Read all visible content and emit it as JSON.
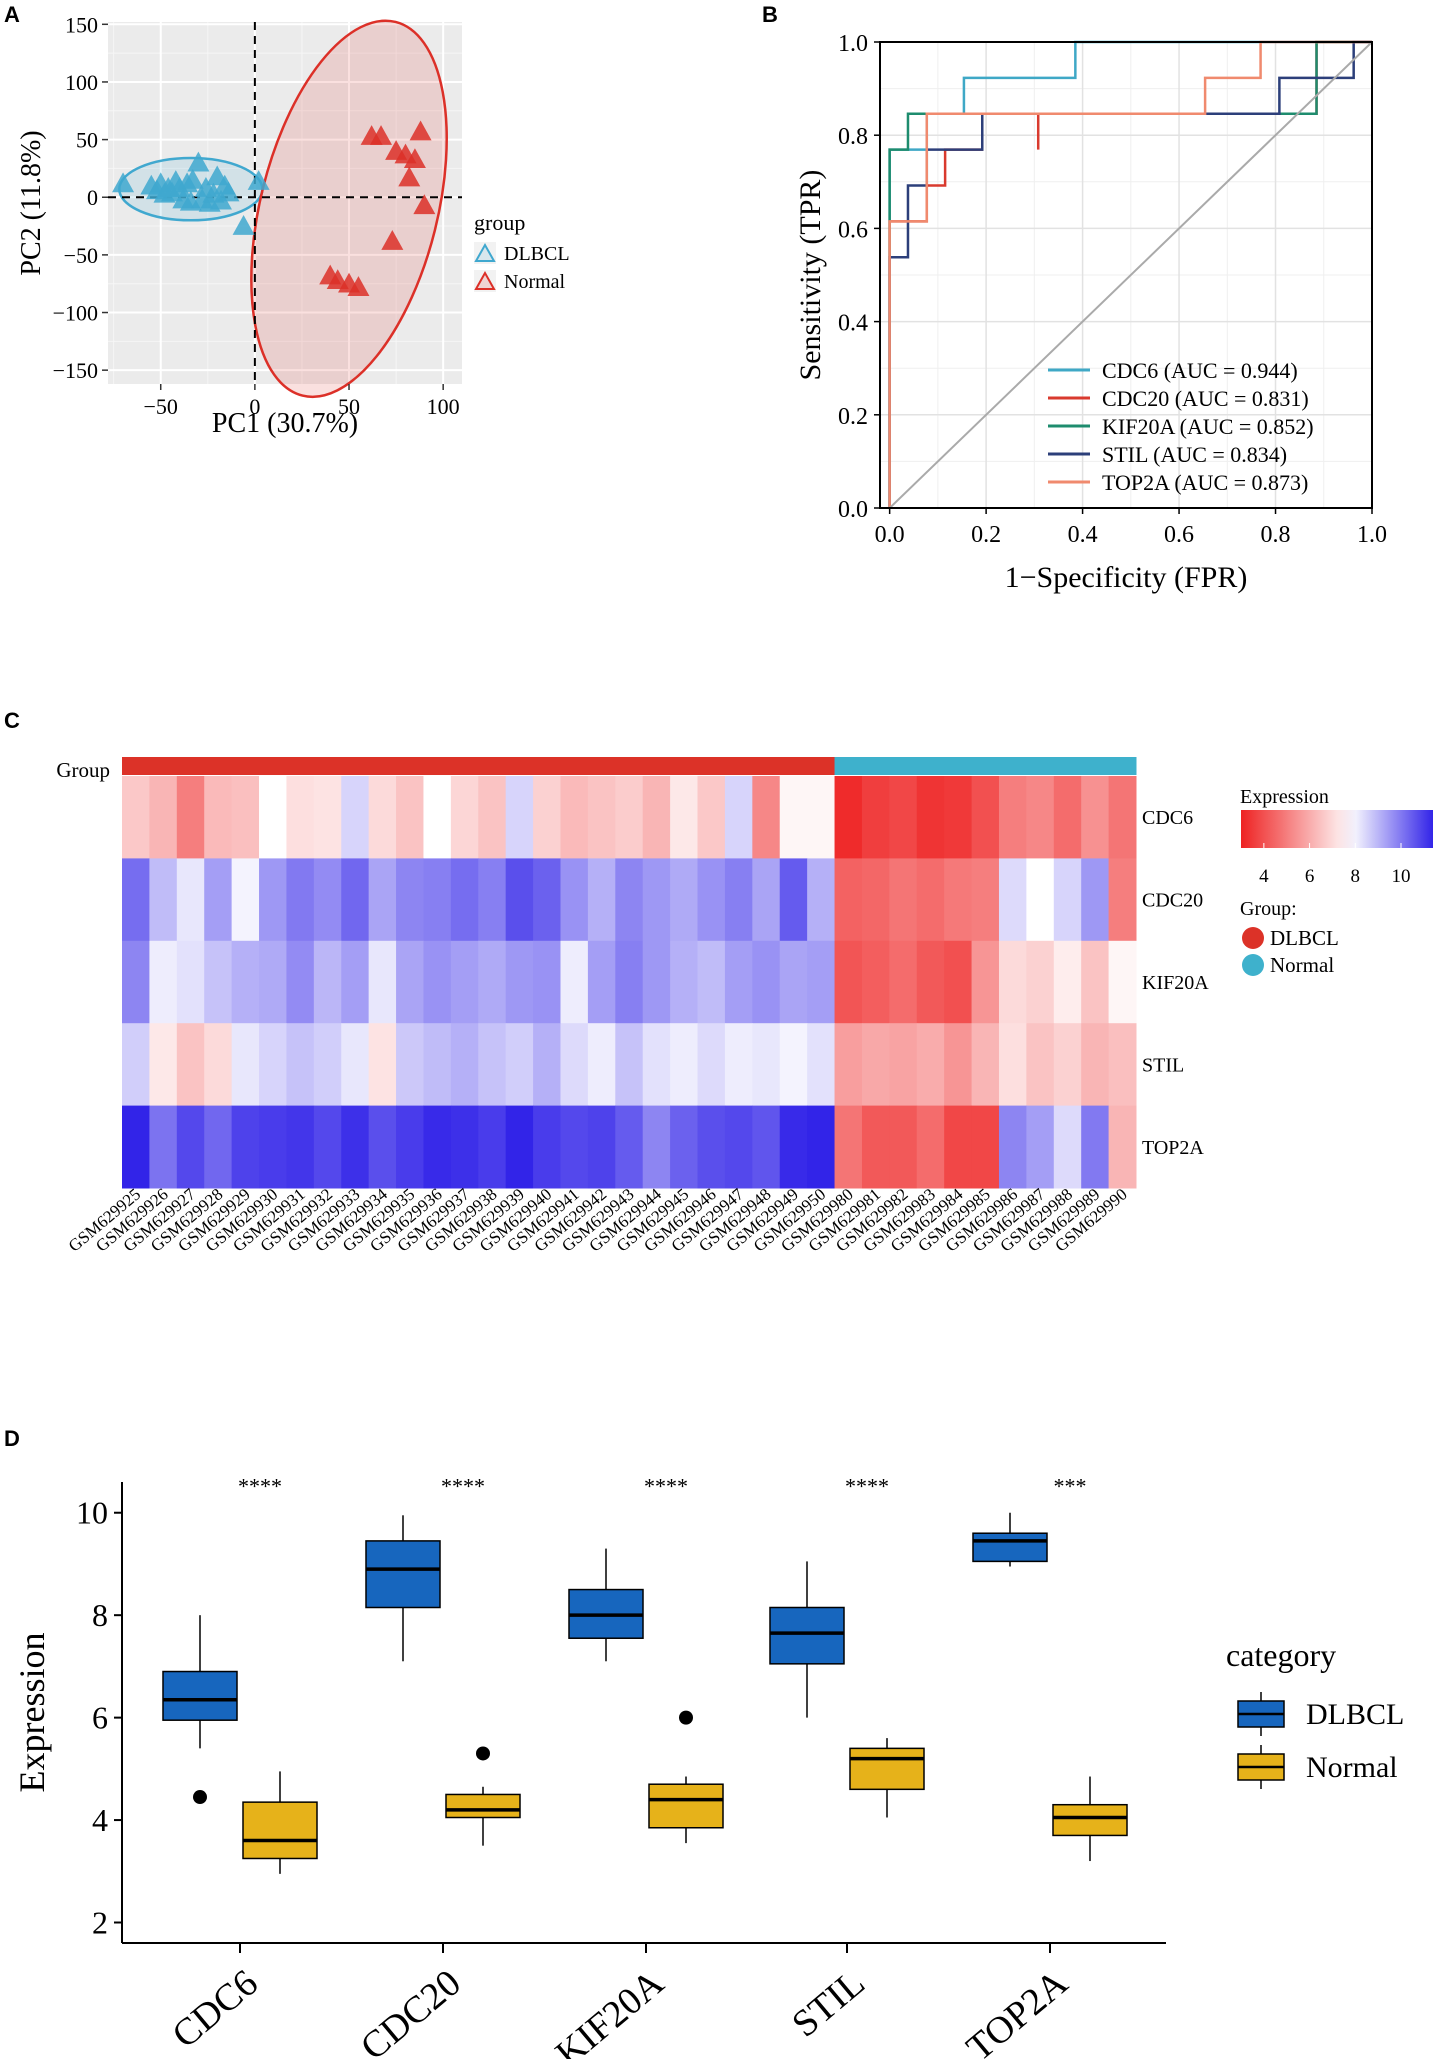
{
  "panels": {
    "a": "A",
    "b": "B",
    "c": "C",
    "d": "D"
  },
  "colors": {
    "dlbcl_pca": "#40A8CF",
    "normal_pca": "#DC3028",
    "box_dlbcl": "#1766BE",
    "box_normal": "#E6B21A",
    "hm_dlbcl": "#DC3228",
    "hm_normal": "#3EB1CC"
  },
  "chart_data": [
    {
      "type": "scatter",
      "panel": "A",
      "xlabel": "PC1 (30.7%)",
      "ylabel": "PC2 (11.8%)",
      "xlim": [
        -78,
        110
      ],
      "ylim": [
        -162,
        152
      ],
      "xticks": [
        -50,
        0,
        50,
        100
      ],
      "xtick_labels": [
        "−50",
        "0",
        "50",
        "100"
      ],
      "yticks": [
        150,
        100,
        50,
        0,
        -50,
        -100,
        -150
      ],
      "ytick_labels": [
        "150",
        "100",
        "50",
        "0",
        "−50",
        "−100",
        "−150"
      ],
      "grid": true,
      "legend_title": "group",
      "series": [
        {
          "name": "DLBCL",
          "points": [
            [
              -70,
              12
            ],
            [
              -55,
              10
            ],
            [
              -52,
              6
            ],
            [
              -50,
              12
            ],
            [
              -48,
              3
            ],
            [
              -46,
              8
            ],
            [
              -44,
              4
            ],
            [
              -42,
              14
            ],
            [
              -40,
              8
            ],
            [
              -38,
              -2
            ],
            [
              -36,
              12
            ],
            [
              -34,
              -4
            ],
            [
              -33,
              15
            ],
            [
              -30,
              30
            ],
            [
              -28,
              -2
            ],
            [
              -26,
              8
            ],
            [
              -24,
              -5
            ],
            [
              -22,
              3
            ],
            [
              -20,
              18
            ],
            [
              -18,
              -3
            ],
            [
              -16,
              10
            ],
            [
              -14,
              4
            ],
            [
              -6,
              -25
            ],
            [
              2,
              14
            ]
          ],
          "ellipse": {
            "cx": -34,
            "cy": 7,
            "rx": 38,
            "ry": 27,
            "angle": 0
          }
        },
        {
          "name": "Normal",
          "points": [
            [
              62,
              53
            ],
            [
              67,
              53
            ],
            [
              75,
              40
            ],
            [
              80,
              37
            ],
            [
              85,
              33
            ],
            [
              88,
              57
            ],
            [
              82,
              17
            ],
            [
              90,
              -7
            ],
            [
              73,
              -38
            ],
            [
              40,
              -68
            ],
            [
              44,
              -72
            ],
            [
              50,
              -75
            ],
            [
              55,
              -78
            ]
          ],
          "ellipse": {
            "cx": 50,
            "cy": -10,
            "rx": 47,
            "ry": 167,
            "angle": 14
          }
        }
      ]
    },
    {
      "type": "line",
      "panel": "B",
      "xlabel": "1−Specificity (FPR)",
      "ylabel": "Sensitivity (TPR)",
      "xlim": [
        -0.02,
        1.0
      ],
      "ylim": [
        0,
        1.0
      ],
      "xticks": [
        0.0,
        0.2,
        0.4,
        0.6,
        0.8,
        1.0
      ],
      "xtick_labels": [
        "0.0",
        "0.2",
        "0.4",
        "0.6",
        "0.8",
        "1.0"
      ],
      "yticks": [
        0.0,
        0.2,
        0.4,
        0.6,
        0.8,
        1.0
      ],
      "ytick_labels": [
        "0.0",
        "0.2",
        "0.4",
        "0.6",
        "0.8",
        "1.0"
      ],
      "grid": true,
      "series": [
        {
          "name": "CDC6 (AUC = 0.944)",
          "color": "#3FA8C6",
          "points": [
            [
              0,
              0
            ],
            [
              0,
              0.769
            ],
            [
              0.077,
              0.769
            ],
            [
              0.077,
              0.846
            ],
            [
              0.154,
              0.846
            ],
            [
              0.154,
              0.923
            ],
            [
              0.385,
              0.923
            ],
            [
              0.385,
              1.0
            ],
            [
              1.0,
              1.0
            ]
          ]
        },
        {
          "name": "CDC20 (AUC = 0.831)",
          "color": "#D93A2E",
          "points": [
            [
              0,
              0
            ],
            [
              0,
              0.615
            ],
            [
              0.077,
              0.615
            ],
            [
              0.077,
              0.692
            ],
            [
              0.115,
              0.692
            ],
            [
              0.115,
              0.769
            ],
            [
              0.192,
              0.769
            ],
            [
              0.192,
              0.846
            ],
            [
              0.308,
              0.846
            ],
            [
              0.308,
              0.769
            ],
            [
              0.308,
              0.846
            ],
            [
              0.885,
              0.846
            ],
            [
              0.885,
              1.0
            ],
            [
              1.0,
              1.0
            ]
          ]
        },
        {
          "name": "KIF20A (AUC = 0.852)",
          "color": "#1E8C6E",
          "points": [
            [
              0,
              0
            ],
            [
              0,
              0.769
            ],
            [
              0.038,
              0.769
            ],
            [
              0.038,
              0.846
            ],
            [
              0.846,
              0.846
            ],
            [
              0.846,
              0.846
            ],
            [
              0.885,
              0.846
            ],
            [
              0.885,
              1.0
            ],
            [
              1.0,
              1.0
            ]
          ]
        },
        {
          "name": "STIL (AUC = 0.834)",
          "color": "#2C3F7A",
          "points": [
            [
              0,
              0
            ],
            [
              0,
              0.538
            ],
            [
              0.038,
              0.538
            ],
            [
              0.038,
              0.692
            ],
            [
              0.077,
              0.692
            ],
            [
              0.077,
              0.769
            ],
            [
              0.192,
              0.769
            ],
            [
              0.192,
              0.846
            ],
            [
              0.654,
              0.846
            ],
            [
              0.654,
              0.846
            ],
            [
              0.808,
              0.846
            ],
            [
              0.808,
              0.923
            ],
            [
              0.962,
              0.923
            ],
            [
              0.962,
              1.0
            ],
            [
              1.0,
              1.0
            ]
          ]
        },
        {
          "name": "TOP2A (AUC = 0.873)",
          "color": "#F08A6E",
          "points": [
            [
              0,
              0
            ],
            [
              0,
              0.615
            ],
            [
              0.077,
              0.615
            ],
            [
              0.077,
              0.846
            ],
            [
              0.654,
              0.846
            ],
            [
              0.654,
              0.923
            ],
            [
              0.769,
              0.923
            ],
            [
              0.769,
              1.0
            ],
            [
              1.0,
              1.0
            ]
          ]
        },
        {
          "name": "reference",
          "color": "#AAAAAA",
          "points": [
            [
              0,
              0
            ],
            [
              1,
              1
            ]
          ]
        }
      ]
    },
    {
      "type": "heatmap",
      "panel": "C",
      "annotation_label": "Group",
      "rows": [
        "CDC6",
        "CDC20",
        "KIF20A",
        "STIL",
        "TOP2A"
      ],
      "columns": [
        "GSM629925",
        "GSM629926",
        "GSM629927",
        "GSM629928",
        "GSM629929",
        "GSM629930",
        "GSM629931",
        "GSM629932",
        "GSM629933",
        "GSM629934",
        "GSM629935",
        "GSM629936",
        "GSM629937",
        "GSM629938",
        "GSM629939",
        "GSM629940",
        "GSM629941",
        "GSM629942",
        "GSM629943",
        "GSM629944",
        "GSM629945",
        "GSM629946",
        "GSM629947",
        "GSM629948",
        "GSM629949",
        "GSM629950",
        "GSM629980",
        "GSM629981",
        "GSM629982",
        "GSM629983",
        "GSM629984",
        "GSM629985",
        "GSM629986",
        "GSM629987",
        "GSM629988",
        "GSM629989",
        "GSM629990"
      ],
      "column_groups": [
        "DLBCL",
        "DLBCL",
        "DLBCL",
        "DLBCL",
        "DLBCL",
        "DLBCL",
        "DLBCL",
        "DLBCL",
        "DLBCL",
        "DLBCL",
        "DLBCL",
        "DLBCL",
        "DLBCL",
        "DLBCL",
        "DLBCL",
        "DLBCL",
        "DLBCL",
        "DLBCL",
        "DLBCL",
        "DLBCL",
        "DLBCL",
        "DLBCL",
        "DLBCL",
        "DLBCL",
        "DLBCL",
        "DLBCL",
        "Normal",
        "Normal",
        "Normal",
        "Normal",
        "Normal",
        "Normal",
        "Normal",
        "Normal",
        "Normal",
        "Normal",
        "Normal"
      ],
      "values": [
        [
          6.6,
          6.2,
          5.0,
          6.3,
          6.4,
          7.8,
          7.1,
          7.2,
          8.5,
          7.0,
          6.5,
          7.8,
          6.9,
          6.5,
          8.5,
          6.8,
          6.3,
          6.5,
          6.7,
          6.2,
          7.3,
          6.6,
          8.5,
          5.2,
          7.6,
          7.6,
          3.2,
          3.6,
          3.8,
          3.4,
          3.5,
          4.0,
          5.0,
          5.2,
          4.6,
          5.4,
          4.8
        ],
        [
          10.2,
          8.9,
          8.2,
          9.4,
          8.0,
          9.5,
          10.0,
          9.7,
          10.3,
          9.3,
          9.8,
          9.9,
          10.2,
          9.9,
          10.7,
          10.4,
          9.6,
          9.1,
          9.8,
          9.5,
          9.2,
          9.6,
          9.9,
          9.3,
          10.5,
          9.1,
          4.4,
          4.5,
          4.8,
          4.6,
          4.9,
          5.0,
          8.4,
          7.8,
          8.5,
          9.5,
          5.0
        ],
        [
          9.8,
          8.1,
          8.3,
          8.8,
          9.1,
          9.2,
          9.7,
          9.0,
          9.4,
          8.2,
          9.3,
          9.6,
          9.4,
          9.2,
          9.5,
          9.6,
          8.1,
          9.4,
          9.9,
          9.5,
          9.1,
          8.9,
          9.4,
          9.6,
          9.3,
          9.4,
          4.1,
          4.3,
          4.6,
          4.2,
          4.0,
          5.5,
          7.0,
          6.8,
          7.4,
          6.5,
          7.6
        ],
        [
          8.6,
          7.3,
          6.5,
          7.0,
          8.2,
          8.5,
          8.8,
          8.6,
          8.2,
          7.2,
          8.7,
          8.9,
          9.1,
          8.8,
          8.6,
          9.1,
          8.4,
          8.1,
          8.8,
          8.3,
          8.1,
          8.4,
          8.1,
          8.2,
          8.0,
          8.3,
          5.7,
          5.9,
          5.8,
          6.0,
          5.5,
          6.2,
          7.1,
          6.5,
          6.8,
          6.2,
          6.4
        ],
        [
          11.4,
          10.1,
          10.8,
          10.3,
          10.9,
          11.0,
          11.1,
          10.8,
          11.2,
          10.7,
          11.0,
          11.3,
          11.2,
          11.0,
          11.6,
          11.0,
          10.8,
          10.9,
          10.5,
          9.8,
          10.4,
          10.7,
          10.8,
          10.6,
          11.3,
          11.5,
          4.8,
          4.2,
          4.2,
          4.6,
          3.8,
          3.8,
          9.8,
          9.4,
          8.4,
          10.0,
          6.2
        ]
      ],
      "legend_title": "Expression",
      "legend_ticks": [
        4,
        6,
        8,
        10
      ],
      "legend_range": [
        3,
        11.4
      ],
      "group_legend_title": "Group:",
      "group_legend": [
        "DLBCL",
        "Normal"
      ]
    },
    {
      "type": "box",
      "panel": "D",
      "ylabel": "Expression",
      "ylim": [
        1.6,
        10.6
      ],
      "yticks": [
        2,
        4,
        6,
        8,
        10
      ],
      "ytick_labels": [
        "2",
        "4",
        "6",
        "8",
        "10"
      ],
      "categories": [
        "CDC6",
        "CDC20",
        "KIF20A",
        "STIL",
        "TOP2A"
      ],
      "significance": [
        "****",
        "****",
        "****",
        "****",
        "***"
      ],
      "legend_title": "category",
      "series": [
        {
          "name": "DLBCL",
          "boxes": [
            {
              "min": 5.4,
              "q1": 5.95,
              "median": 6.35,
              "q3": 6.9,
              "max": 8.0,
              "outliers": [
                4.45
              ]
            },
            {
              "min": 7.1,
              "q1": 8.15,
              "median": 8.9,
              "q3": 9.45,
              "max": 9.95,
              "outliers": []
            },
            {
              "min": 7.1,
              "q1": 7.55,
              "median": 8.0,
              "q3": 8.5,
              "max": 9.3,
              "outliers": []
            },
            {
              "min": 6.0,
              "q1": 7.05,
              "median": 7.65,
              "q3": 8.15,
              "max": 9.05,
              "outliers": []
            },
            {
              "min": 8.95,
              "q1": 9.05,
              "median": 9.45,
              "q3": 9.6,
              "max": 10.0,
              "outliers": []
            }
          ]
        },
        {
          "name": "Normal",
          "boxes": [
            {
              "min": 2.95,
              "q1": 3.25,
              "median": 3.6,
              "q3": 4.35,
              "max": 4.95,
              "outliers": []
            },
            {
              "min": 3.5,
              "q1": 4.05,
              "median": 4.2,
              "q3": 4.5,
              "max": 4.65,
              "outliers": [
                5.3
              ]
            },
            {
              "min": 3.55,
              "q1": 3.85,
              "median": 4.4,
              "q3": 4.7,
              "max": 4.85,
              "outliers": [
                6.0
              ]
            },
            {
              "min": 4.05,
              "q1": 4.6,
              "median": 5.2,
              "q3": 5.4,
              "max": 5.6,
              "outliers": []
            },
            {
              "min": 3.2,
              "q1": 3.7,
              "median": 4.05,
              "q3": 4.3,
              "max": 4.85,
              "outliers": []
            }
          ]
        }
      ]
    }
  ]
}
